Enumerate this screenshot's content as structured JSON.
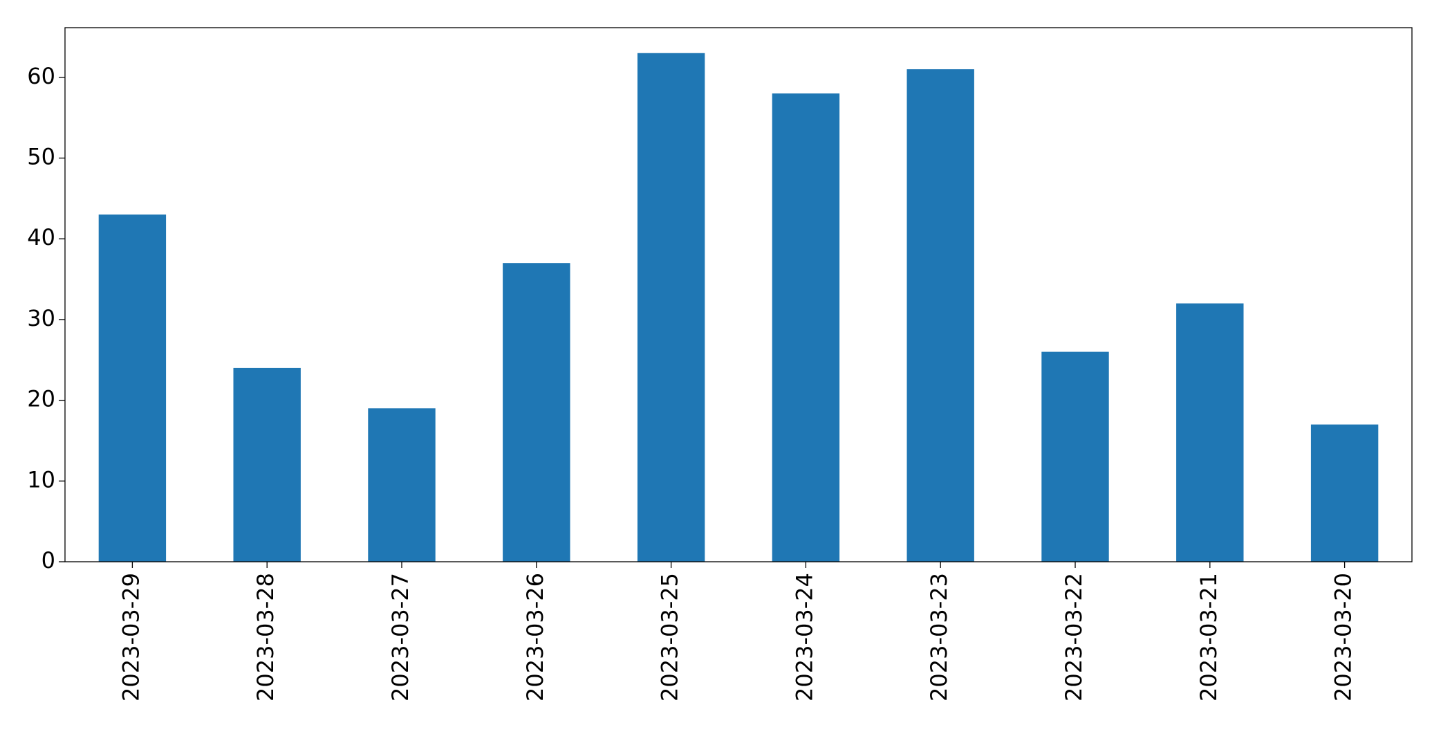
{
  "chart_data": {
    "type": "bar",
    "categories": [
      "2023-03-29",
      "2023-03-28",
      "2023-03-27",
      "2023-03-26",
      "2023-03-25",
      "2023-03-24",
      "2023-03-23",
      "2023-03-22",
      "2023-03-21",
      "2023-03-20"
    ],
    "values": [
      43,
      24,
      19,
      37,
      63,
      58,
      61,
      26,
      32,
      17
    ],
    "color": "#1f77b4",
    "ylim": [
      0,
      66.15
    ],
    "yticks": [
      0,
      10,
      20,
      30,
      40,
      50,
      60
    ],
    "grid": false
  }
}
